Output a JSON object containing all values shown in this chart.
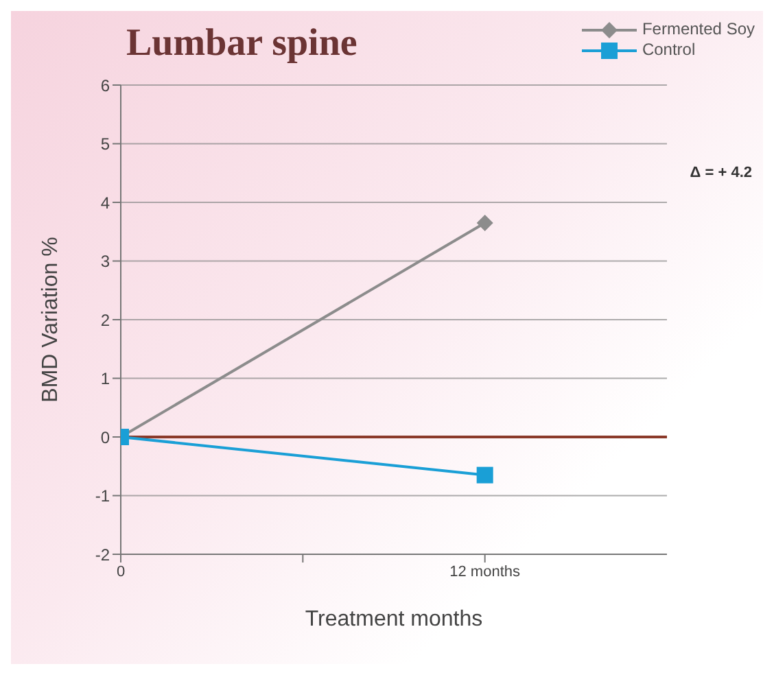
{
  "chart_data": {
    "type": "line",
    "title": "Lumbar spine",
    "xlabel": "Treatment months",
    "ylabel": "BMD Variation %",
    "x": [
      0,
      12
    ],
    "series": [
      {
        "name": "Fermented Soy",
        "color": "#8c8c8c",
        "values": [
          0,
          3.65
        ],
        "marker": "diamond"
      },
      {
        "name": "Control",
        "color": "#1a9fd6",
        "values": [
          0,
          -0.65
        ],
        "marker": "square"
      }
    ],
    "xlim": [
      0,
      18
    ],
    "xticks": [
      0,
      {
        "value": 6,
        "label": null
      },
      {
        "value": 12,
        "label": "12 months"
      }
    ],
    "ylim": [
      -2,
      6
    ],
    "yticks": [
      -2,
      -1,
      0,
      1,
      2,
      3,
      4,
      5,
      6
    ],
    "ref_lines": [
      {
        "axis": "y",
        "value": 0,
        "label": null,
        "color": "#8b3a2a"
      }
    ],
    "annotations": [
      "Δ = + 4.2"
    ],
    "grid": "y",
    "legend": "top right",
    "line_style": "solid"
  }
}
